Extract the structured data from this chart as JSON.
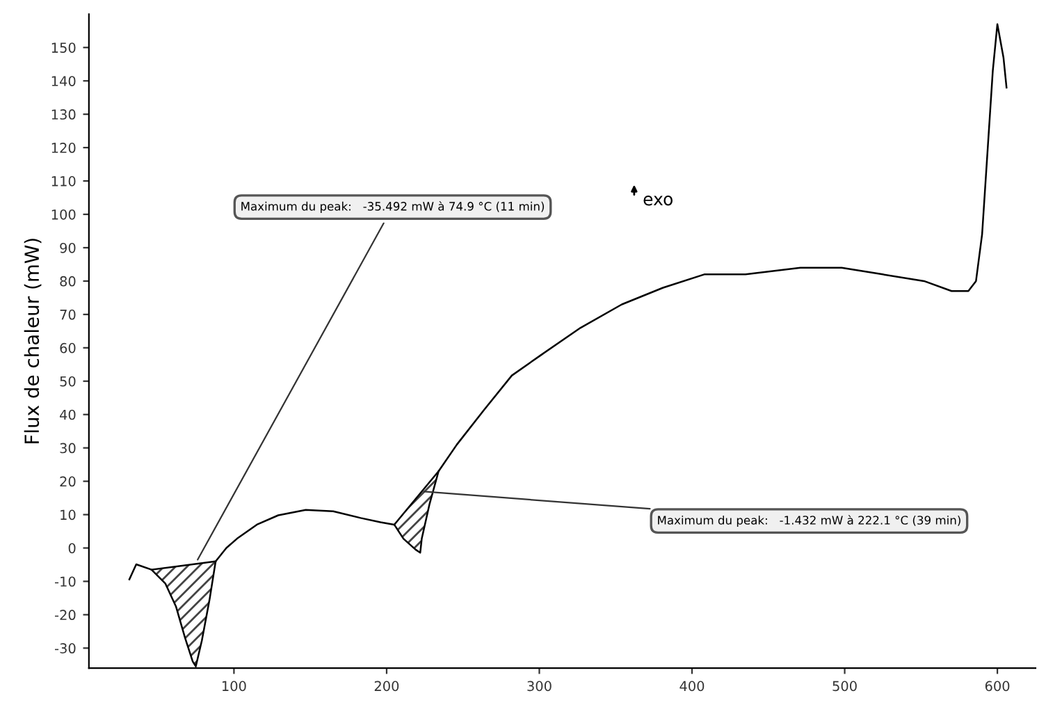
{
  "chart_data": {
    "type": "line",
    "ylabel": "Flux de chaleur (mW)",
    "xlim": [
      5,
      625
    ],
    "ylim": [
      -36,
      160
    ],
    "xticks": [
      100,
      200,
      300,
      400,
      500,
      600
    ],
    "yticks": [
      -30,
      -20,
      -10,
      0,
      10,
      20,
      30,
      40,
      50,
      60,
      70,
      80,
      90,
      100,
      110,
      120,
      130,
      140,
      150
    ],
    "grid": false,
    "legend": false,
    "series": [
      {
        "color": "#000000",
        "x": [
          31.5,
          36,
          46,
          55,
          62,
          68,
          73,
          75,
          79,
          84,
          88,
          95,
          102,
          115,
          129,
          147,
          165,
          183,
          196,
          205,
          211,
          219,
          222,
          223,
          228,
          234,
          246,
          264,
          282,
          301,
          327,
          354,
          381,
          408,
          435,
          471,
          498,
          525,
          552,
          570,
          581,
          586,
          590,
          593,
          597,
          600,
          604,
          606
        ],
        "values": [
          -9.4,
          -4.9,
          -6.5,
          -10.6,
          -17.5,
          -27,
          -34,
          -35.5,
          -27.7,
          -15.5,
          -4,
          0,
          2.8,
          7,
          9.8,
          11.4,
          11,
          9,
          7.7,
          7,
          2.8,
          -0.5,
          -1.4,
          2.8,
          13,
          23,
          31,
          41.5,
          51.7,
          57.8,
          66,
          73,
          78,
          82,
          82,
          84,
          84,
          82,
          80,
          77,
          77,
          80,
          94,
          115,
          143,
          157,
          147,
          138
        ]
      },
      {
        "type": "line",
        "color": "#000000",
        "x": [
          46,
          88
        ],
        "values": [
          -6.5,
          -4
        ]
      },
      {
        "type": "line",
        "color": "#000000",
        "x": [
          205,
          234
        ],
        "values": [
          7,
          23
        ]
      }
    ],
    "annotations": [
      {
        "text": "Maximum du peak:   -35.492 mW à 74.9 °C (11 min)",
        "x": 75,
        "y": -4.5
      },
      {
        "text": "Maximum du peak:   -1.432 mW à 222.1 °C (39 min)",
        "x": 222,
        "y": 17
      },
      "exo"
    ]
  }
}
